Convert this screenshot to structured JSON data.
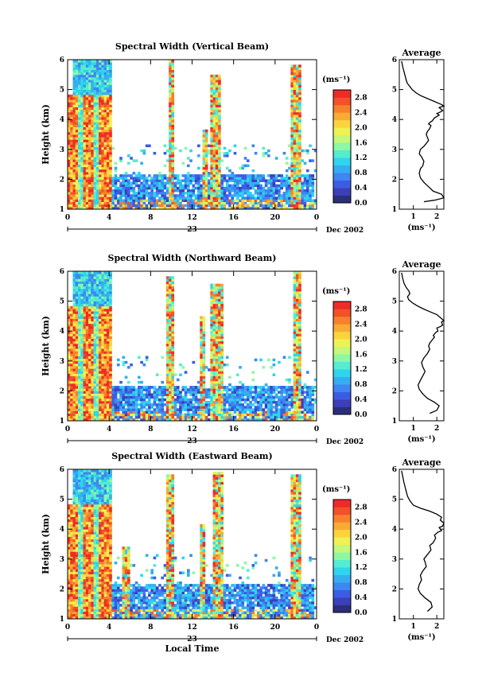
{
  "figure": {
    "xlabel_bottom": "Local Time",
    "date_day": "23",
    "date_label": "Dec 2002"
  },
  "chart_data": [
    {
      "type": "heatmap",
      "title": "Spectral Width (Vertical Beam)",
      "ylabel": "Height (km)",
      "xlabel": "",
      "x_ticks": [
        "0",
        "4",
        "8",
        "12",
        "16",
        "20",
        "0"
      ],
      "y_ticks": [
        "1",
        "2",
        "3",
        "4",
        "5",
        "6"
      ],
      "xlim": [
        0,
        24
      ],
      "ylim": [
        1,
        6
      ],
      "colorbar": {
        "label": "(ms⁻¹)",
        "ticks": [
          "0.0",
          "0.4",
          "0.8",
          "1.2",
          "1.6",
          "2.0",
          "2.4",
          "2.8"
        ],
        "range": [
          0,
          3.0
        ]
      },
      "color_scale": [
        "#2b2f7a",
        "#3d3fb8",
        "#3b5de6",
        "#3e86f0",
        "#35aef0",
        "#2fd4ee",
        "#55ecd0",
        "#8ef7a4",
        "#c4f77a",
        "#eef255",
        "#fbd43d",
        "#f9ab34",
        "#f7802d",
        "#f25129",
        "#ee2b27"
      ]
    },
    {
      "type": "line",
      "title": "Average",
      "xlabel": "(ms⁻¹)",
      "x_ticks": [
        "1",
        "2"
      ],
      "y_ticks": [
        "1",
        "2",
        "3",
        "4",
        "5",
        "6"
      ],
      "xlim": [
        0.4,
        2.3
      ],
      "ylim": [
        1,
        6
      ],
      "x": [
        1.45,
        1.9,
        2.3,
        2.2,
        1.85,
        1.65,
        1.45,
        1.3,
        1.25,
        1.3,
        1.4,
        1.45,
        1.35,
        1.25,
        1.3,
        1.45,
        1.55,
        1.65,
        1.6,
        1.55,
        1.6,
        1.7,
        1.75,
        1.65,
        1.7,
        1.8,
        1.85,
        1.9,
        2.0,
        2.1,
        2.0,
        2.15,
        2.25,
        2.1,
        2.3,
        2.2,
        1.9,
        1.6,
        1.3,
        1.1,
        0.95,
        0.85,
        0.75,
        0.7,
        0.65,
        0.6,
        0.55,
        0.5
      ],
      "y": [
        1.25,
        1.3,
        1.38,
        1.5,
        1.6,
        1.75,
        1.9,
        2.05,
        2.2,
        2.35,
        2.45,
        2.6,
        2.75,
        2.85,
        3.0,
        3.1,
        3.2,
        3.3,
        3.4,
        3.5,
        3.6,
        3.7,
        3.8,
        3.85,
        3.9,
        3.95,
        4.0,
        4.05,
        4.1,
        4.15,
        4.2,
        4.25,
        4.3,
        4.4,
        4.45,
        4.5,
        4.6,
        4.7,
        4.8,
        4.9,
        5.0,
        5.1,
        5.2,
        5.3,
        5.45,
        5.6,
        5.75,
        5.95
      ]
    },
    {
      "type": "heatmap",
      "title": "Spectral Width (Northward Beam)",
      "ylabel": "Height (km)",
      "xlabel": "",
      "x_ticks": [
        "0",
        "4",
        "8",
        "12",
        "16",
        "20",
        "0"
      ],
      "y_ticks": [
        "1",
        "2",
        "3",
        "4",
        "5",
        "6"
      ],
      "xlim": [
        0,
        24
      ],
      "ylim": [
        1,
        6
      ],
      "colorbar": {
        "label": "(ms⁻¹)",
        "ticks": [
          "0.0",
          "0.4",
          "0.8",
          "1.2",
          "1.6",
          "2.0",
          "2.4",
          "2.8"
        ],
        "range": [
          0,
          3.0
        ]
      }
    },
    {
      "type": "line",
      "title": "Average",
      "xlabel": "(ms⁻¹)",
      "x_ticks": [
        "1",
        "2"
      ],
      "y_ticks": [
        "1",
        "2",
        "3",
        "4",
        "5",
        "6"
      ],
      "xlim": [
        0.4,
        2.3
      ],
      "ylim": [
        1,
        6
      ],
      "x": [
        1.7,
        2.0,
        2.1,
        1.9,
        1.6,
        1.4,
        1.25,
        1.2,
        1.3,
        1.4,
        1.5,
        1.4,
        1.35,
        1.45,
        1.6,
        1.7,
        1.65,
        1.7,
        1.8,
        1.9,
        1.85,
        1.95,
        2.05,
        2.0,
        2.15,
        2.25,
        2.2,
        2.3,
        2.15,
        2.0,
        1.7,
        1.4,
        1.15,
        0.95,
        0.8,
        0.75,
        0.85,
        0.8,
        0.7,
        0.6,
        0.55,
        0.5
      ],
      "y": [
        1.25,
        1.35,
        1.5,
        1.62,
        1.75,
        1.9,
        2.05,
        2.2,
        2.35,
        2.5,
        2.65,
        2.8,
        2.95,
        3.1,
        3.25,
        3.4,
        3.5,
        3.6,
        3.7,
        3.8,
        3.85,
        3.95,
        4.0,
        4.1,
        4.15,
        4.2,
        4.3,
        4.35,
        4.45,
        4.55,
        4.65,
        4.75,
        4.85,
        4.95,
        5.05,
        5.15,
        5.25,
        5.35,
        5.45,
        5.6,
        5.75,
        5.95
      ]
    },
    {
      "type": "heatmap",
      "title": "Spectral Width (Eastward Beam)",
      "ylabel": "Height (km)",
      "xlabel": "Local Time",
      "x_ticks": [
        "0",
        "4",
        "8",
        "12",
        "16",
        "20",
        "0"
      ],
      "y_ticks": [
        "1",
        "2",
        "3",
        "4",
        "5",
        "6"
      ],
      "xlim": [
        0,
        24
      ],
      "ylim": [
        1,
        6
      ],
      "colorbar": {
        "label": "(ms⁻¹)",
        "ticks": [
          "0.0",
          "0.4",
          "0.8",
          "1.2",
          "1.6",
          "2.0",
          "2.4",
          "2.8"
        ],
        "range": [
          0,
          3.0
        ]
      }
    },
    {
      "type": "line",
      "title": "Average",
      "xlabel": "(ms⁻¹)",
      "x_ticks": [
        "1",
        "2"
      ],
      "y_ticks": [
        "1",
        "2",
        "3",
        "4",
        "5",
        "6"
      ],
      "xlim": [
        0.4,
        2.3
      ],
      "ylim": [
        1,
        6
      ],
      "x": [
        1.6,
        1.8,
        1.75,
        1.5,
        1.3,
        1.2,
        1.25,
        1.35,
        1.3,
        1.4,
        1.55,
        1.5,
        1.45,
        1.6,
        1.75,
        1.7,
        1.85,
        1.95,
        1.9,
        2.05,
        2.2,
        2.1,
        2.25,
        2.3,
        2.15,
        2.2,
        2.0,
        1.7,
        1.3,
        1.0,
        0.85,
        0.75,
        0.7,
        0.65,
        0.6,
        0.55,
        0.5
      ],
      "y": [
        1.25,
        1.4,
        1.55,
        1.7,
        1.85,
        2.0,
        2.15,
        2.3,
        2.45,
        2.6,
        2.75,
        2.9,
        3.0,
        3.15,
        3.3,
        3.45,
        3.55,
        3.7,
        3.8,
        3.9,
        3.95,
        4.05,
        4.1,
        4.2,
        4.3,
        4.4,
        4.5,
        4.6,
        4.7,
        4.8,
        4.95,
        5.1,
        5.25,
        5.4,
        5.55,
        5.75,
        5.95
      ]
    }
  ]
}
